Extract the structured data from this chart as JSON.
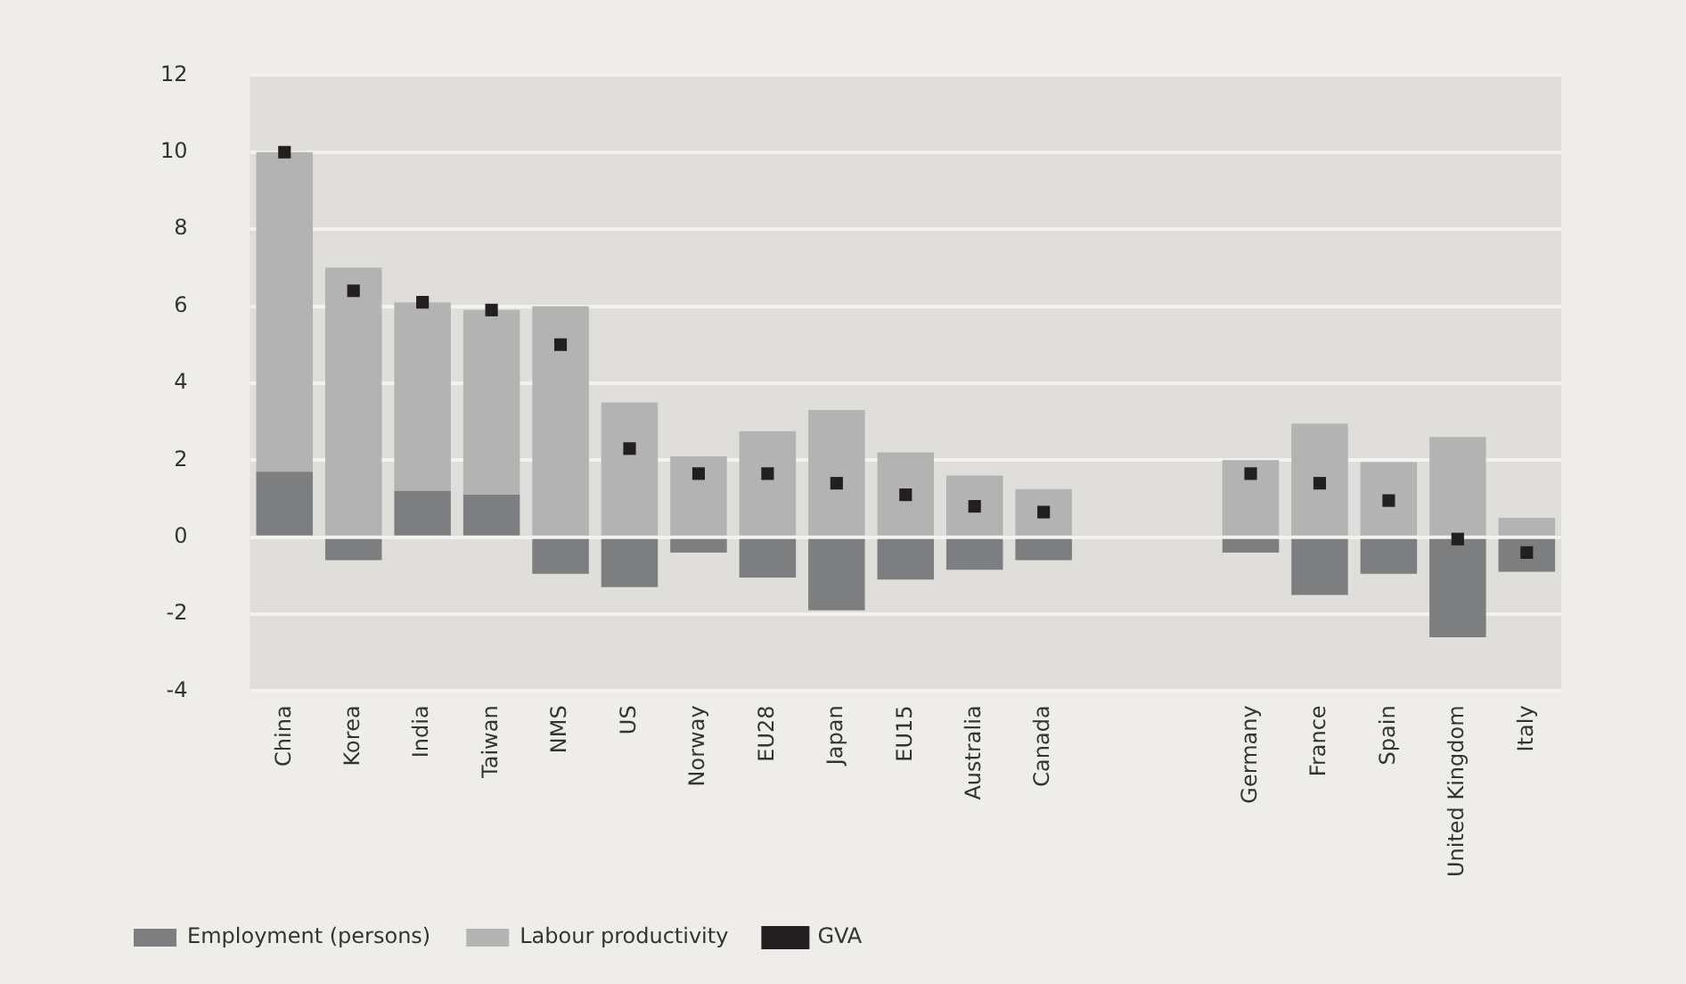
{
  "chart_data": {
    "type": "bar",
    "stacked": true,
    "categories": [
      "China",
      "Korea",
      "India",
      "Taiwan",
      "NMS",
      "US",
      "Norway",
      "EU28",
      "Japan",
      "EU15",
      "Australia",
      "Canada",
      null,
      null,
      "Germany",
      "France",
      "Spain",
      "United Kingdom",
      "Italy"
    ],
    "series": [
      {
        "name": "Employment (persons)",
        "color": "#7d7e80",
        "values": [
          1.7,
          -0.6,
          1.2,
          1.1,
          -0.95,
          -1.3,
          -0.4,
          -1.05,
          -1.9,
          -1.1,
          -0.85,
          -0.6,
          null,
          null,
          -0.4,
          -1.5,
          -0.95,
          -2.6,
          -0.9
        ]
      },
      {
        "name": "Labour productivity",
        "color": "#b3b3b3",
        "values": [
          8.3,
          7.0,
          4.9,
          4.8,
          6.0,
          3.5,
          2.1,
          2.75,
          3.3,
          2.2,
          1.6,
          1.25,
          null,
          null,
          2.0,
          2.95,
          1.95,
          2.6,
          0.5
        ]
      },
      {
        "name": "GVA",
        "type": "scatter",
        "color": "#231f20",
        "values": [
          10.0,
          6.4,
          6.1,
          5.9,
          5.0,
          2.3,
          1.65,
          1.65,
          1.4,
          1.1,
          0.8,
          0.65,
          null,
          null,
          1.65,
          1.4,
          0.95,
          -0.05,
          -0.4
        ]
      }
    ],
    "ylim": [
      -4,
      12
    ],
    "yticks": [
      -4,
      -2,
      0,
      2,
      4,
      6,
      8,
      10,
      12
    ],
    "grid": "y",
    "legend": "bottom left",
    "marker": "square"
  }
}
